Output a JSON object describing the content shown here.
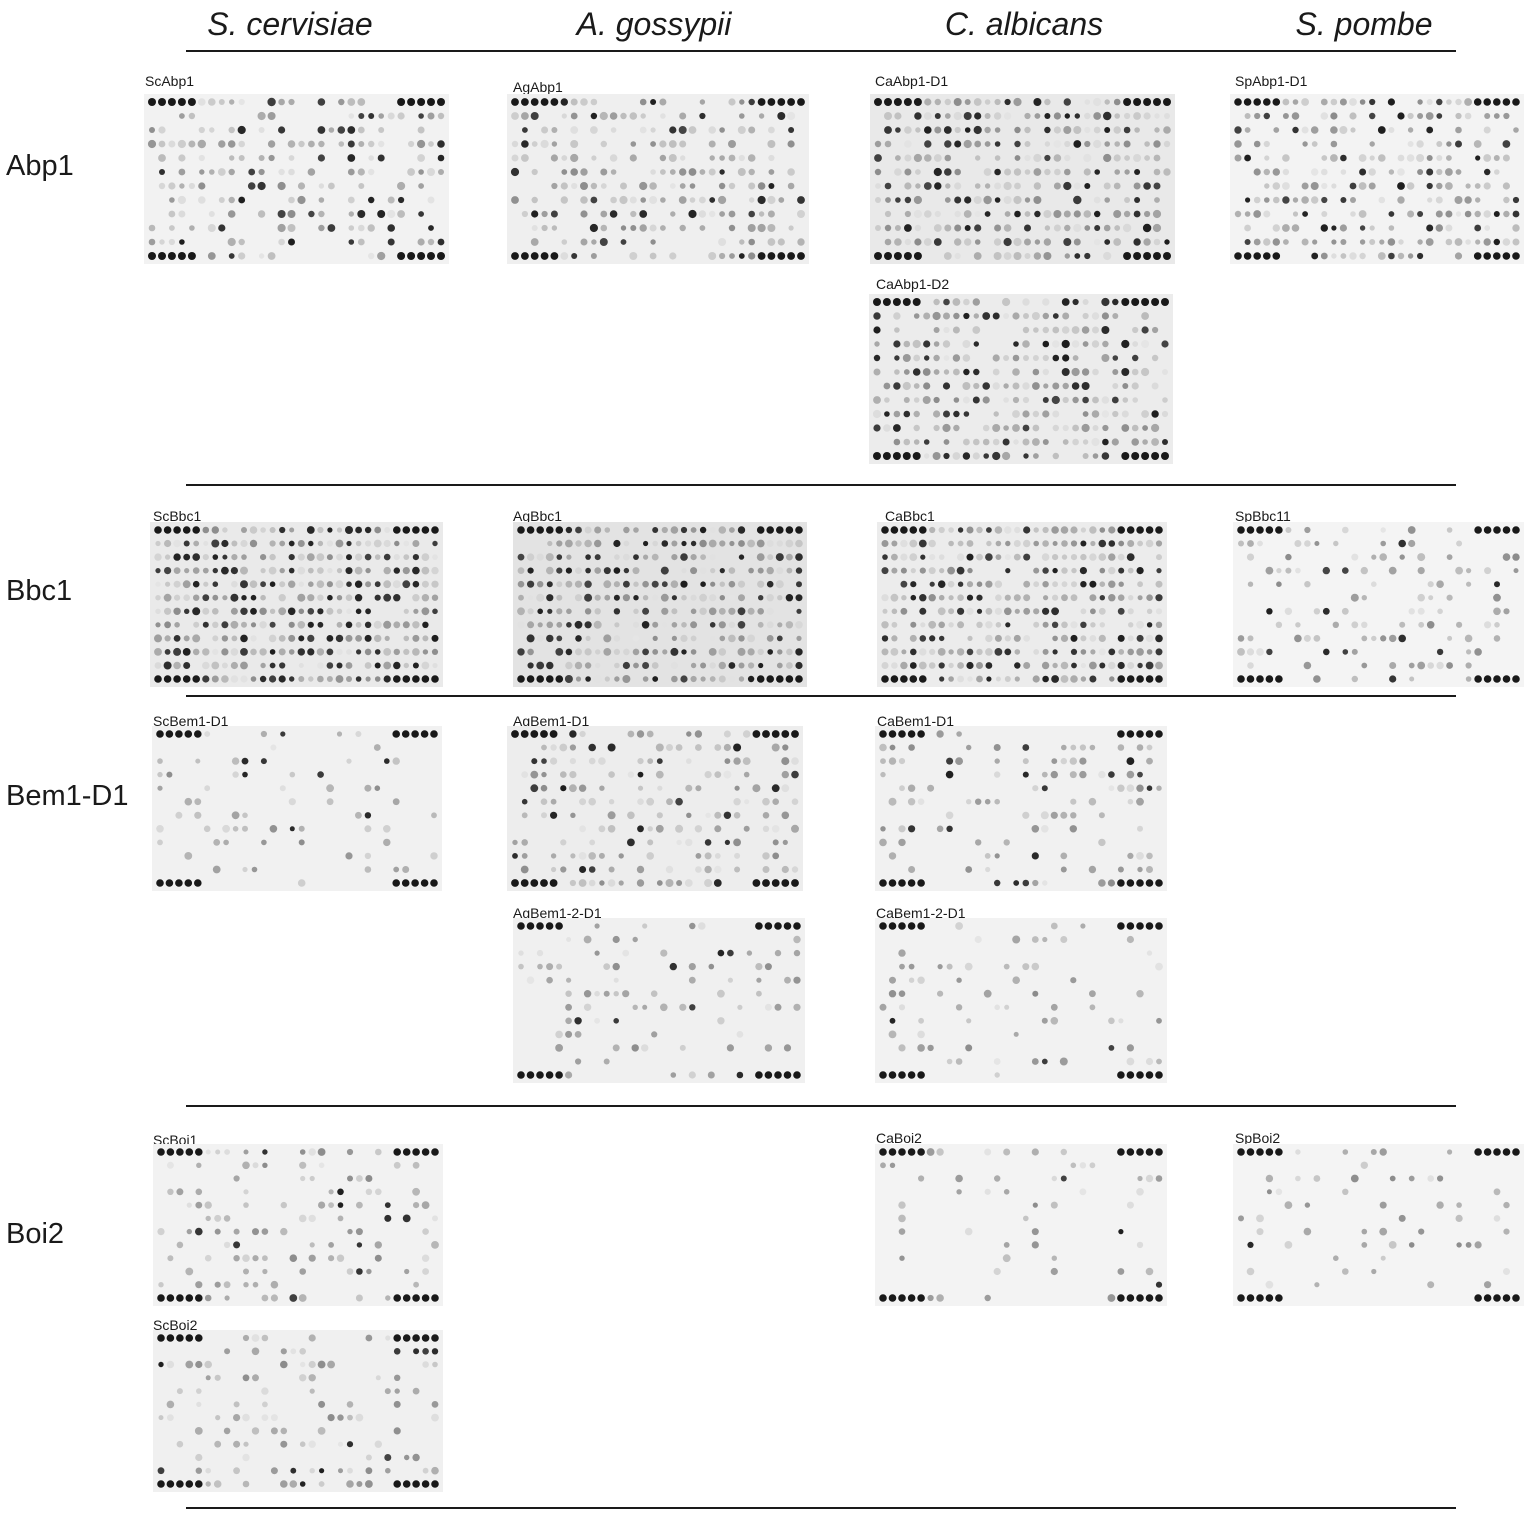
{
  "species_headers": [
    "S. cervisiae",
    "A. gossypii",
    "C. albicans",
    "S. pombe"
  ],
  "row_labels": [
    "Abp1",
    "Bbc1",
    "Bem1-D1",
    "Boi2"
  ],
  "panels": [
    {
      "label": "ScAbp1",
      "intensity": 0.55,
      "bg": "#f2f2f2"
    },
    {
      "label": "AgAbp1",
      "intensity": 0.55,
      "bg": "#efefef"
    },
    {
      "label": "CaAbp1-D1",
      "intensity": 0.75,
      "bg": "#e9e9e9"
    },
    {
      "label": "SpAbp1-D1",
      "intensity": 0.6,
      "bg": "#f3f3f3"
    },
    {
      "label": "CaAbp1-D2",
      "intensity": 0.75,
      "bg": "#ececec"
    },
    {
      "label": "ScBbc1",
      "intensity": 0.9,
      "bg": "#eaeaea"
    },
    {
      "label": "AgBbc1",
      "intensity": 0.8,
      "bg": "#e3e3e3"
    },
    {
      "label": "CaBbc1",
      "intensity": 0.85,
      "bg": "#ececec"
    },
    {
      "label": "SpBbc11",
      "intensity": 0.35,
      "bg": "#f4f4f4"
    },
    {
      "label": "ScBem1-D1",
      "intensity": 0.2,
      "bg": "#f1f1f1"
    },
    {
      "label": "AgBem1-D1",
      "intensity": 0.45,
      "bg": "#ededed"
    },
    {
      "label": "CaBem1-D1",
      "intensity": 0.3,
      "bg": "#f1f1f1"
    },
    {
      "label": "AgBem1-2-D1",
      "intensity": 0.25,
      "bg": "#f0f0f0"
    },
    {
      "label": "CaBem1-2-D1",
      "intensity": 0.18,
      "bg": "#f2f2f2"
    },
    {
      "label": "ScBoi1",
      "intensity": 0.3,
      "bg": "#f2f2f2"
    },
    {
      "label": "CaBoi2",
      "intensity": 0.15,
      "bg": "#f3f3f3"
    },
    {
      "label": "SpBoi2",
      "intensity": 0.15,
      "bg": "#f4f4f4"
    },
    {
      "label": "ScBoi2",
      "intensity": 0.35,
      "bg": "#f0f0f0"
    }
  ]
}
